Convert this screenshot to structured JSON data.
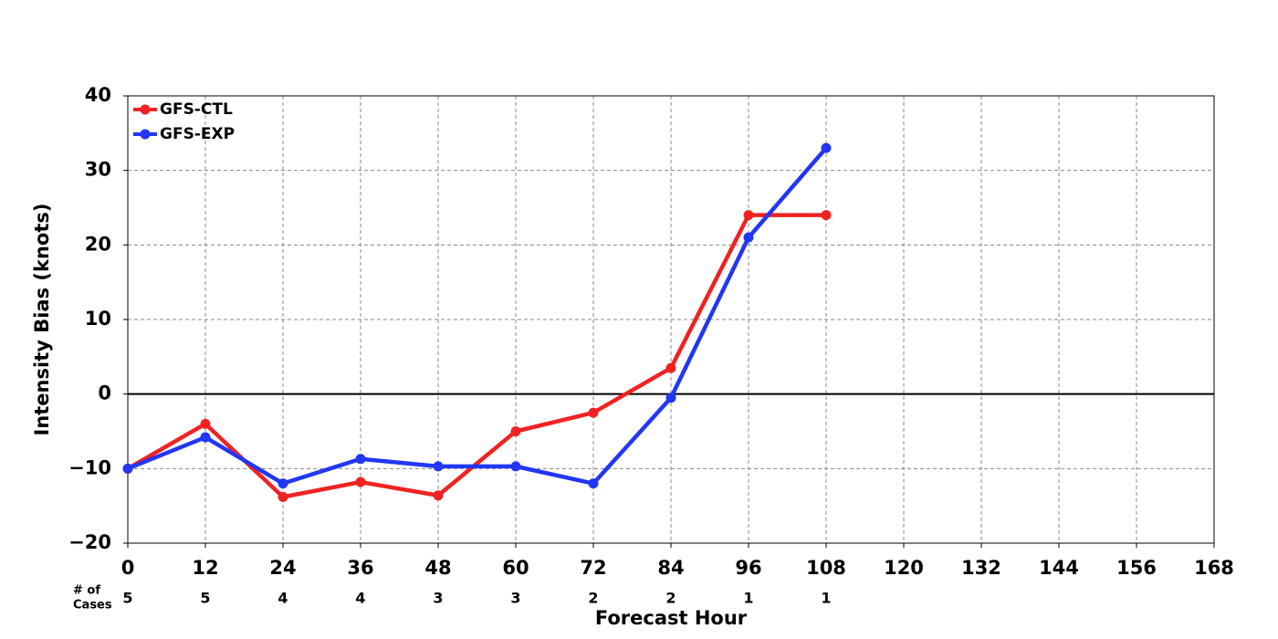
{
  "chart_data": {
    "type": "line",
    "xlabel": "Forecast Hour",
    "ylabel": "Intensity Bias (knots)",
    "x": [
      0,
      12,
      24,
      36,
      48,
      60,
      72,
      84,
      96,
      108
    ],
    "series": [
      {
        "name": "GFS-CTL",
        "color": "#f02222",
        "values": [
          -10,
          -4,
          -13.8,
          -11.8,
          -13.6,
          -5,
          -2.5,
          3.5,
          24,
          24
        ]
      },
      {
        "name": "GFS-EXP",
        "color": "#2236f5",
        "values": [
          -10,
          -5.8,
          -12,
          -8.7,
          -9.7,
          -9.7,
          -12,
          -0.5,
          21,
          33
        ]
      }
    ],
    "cases_label": [
      "# of",
      "Cases"
    ],
    "cases": [
      5,
      5,
      4,
      4,
      3,
      3,
      2,
      2,
      1,
      1
    ],
    "xlim": [
      0,
      168
    ],
    "xticks": [
      0,
      12,
      24,
      36,
      48,
      60,
      72,
      84,
      96,
      108,
      120,
      132,
      144,
      156,
      168
    ],
    "ylim": [
      -20,
      40
    ],
    "yticks": [
      {
        "value": -20,
        "label": "−20"
      },
      {
        "value": -10,
        "label": "−10"
      },
      0,
      10,
      20,
      30,
      40
    ],
    "reference_line": 0,
    "grid": true,
    "legend": "upper left"
  }
}
